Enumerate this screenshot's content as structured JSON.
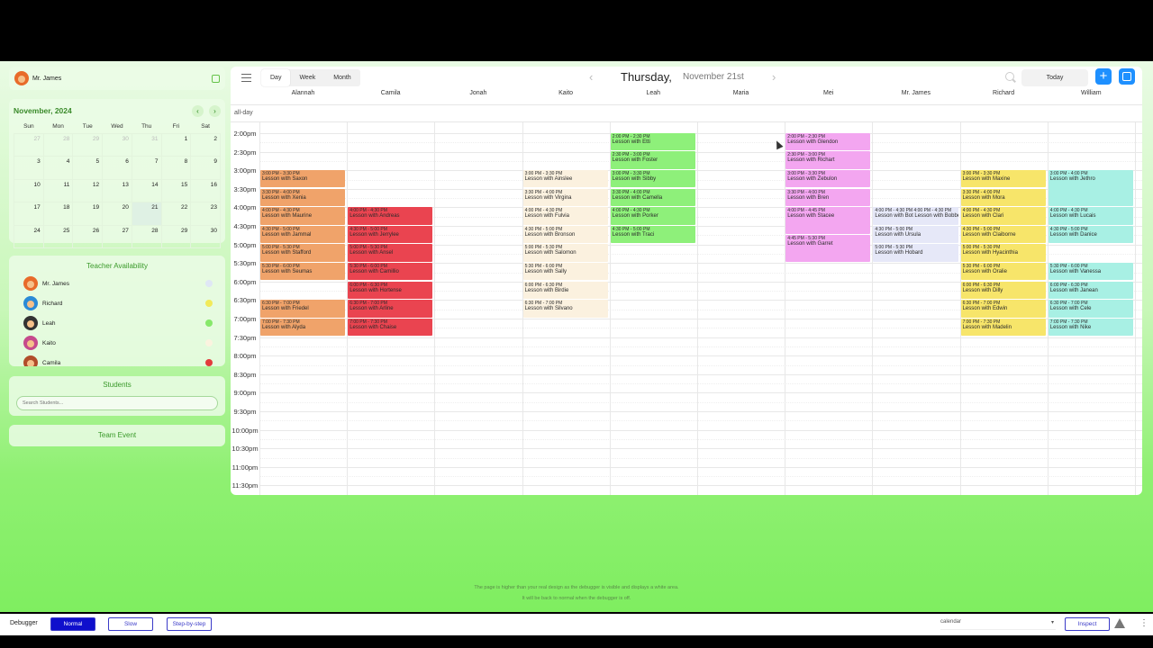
{
  "user": {
    "name": "Mr. James"
  },
  "mini_calendar": {
    "month_label": "November, 2024",
    "weekdays": [
      "Sun",
      "Mon",
      "Tue",
      "Wed",
      "Thu",
      "Fri",
      "Sat"
    ],
    "weeks": [
      [
        "27",
        "28",
        "29",
        "30",
        "31",
        "1",
        "2"
      ],
      [
        "3",
        "4",
        "5",
        "6",
        "7",
        "8",
        "9"
      ],
      [
        "10",
        "11",
        "12",
        "13",
        "14",
        "15",
        "16"
      ],
      [
        "17",
        "18",
        "19",
        "20",
        "21",
        "22",
        "23"
      ],
      [
        "24",
        "25",
        "26",
        "27",
        "28",
        "29",
        "30"
      ]
    ],
    "today": "21"
  },
  "availability": {
    "title": "Teacher Availability",
    "teachers": [
      {
        "name": "Mr. James",
        "dot": "#dfe7f5",
        "avatar": "#e86b2a"
      },
      {
        "name": "Richard",
        "dot": "#f2ea5a",
        "avatar": "#2b8bd6"
      },
      {
        "name": "Leah",
        "dot": "#86e86a",
        "avatar": "#333333"
      },
      {
        "name": "Kaito",
        "dot": "#fbf3df",
        "avatar": "#c64a8c"
      },
      {
        "name": "Camila",
        "dot": "#e23b3b",
        "avatar": "#b14d2a"
      }
    ]
  },
  "students": {
    "title": "Students",
    "search_placeholder": "Search Students..."
  },
  "team_event": {
    "title": "Team Event"
  },
  "toolbar": {
    "views": [
      "Day",
      "Week",
      "Month"
    ],
    "active_view": "Day",
    "date_title": "Thursday,",
    "date_sub": "November 21st",
    "today_label": "Today",
    "add_label": "+"
  },
  "columns": [
    "Alannah",
    "Camila",
    "Jonah",
    "Kaito",
    "Leah",
    "Maria",
    "Mei",
    "Mr. James",
    "Richard",
    "William"
  ],
  "allday_label": "all-day",
  "time_labels": [
    "2:00pm",
    "2:30pm",
    "3:00pm",
    "3:30pm",
    "4:00pm",
    "4:30pm",
    "5:00pm",
    "5:30pm",
    "6:00pm",
    "6:30pm",
    "7:00pm",
    "7:30pm",
    "8:00pm",
    "8:30pm",
    "9:00pm",
    "9:30pm",
    "10:00pm",
    "10:30pm",
    "11:00pm",
    "11:30pm"
  ],
  "column_colors": {
    "Alannah": "#f0a36a",
    "Camila": "#ea4450",
    "Kaito": "#fbf1df",
    "Leah": "#8ef07a",
    "Mei": "#f3a6f0",
    "Mr. James": "#e6e8f8",
    "Richard": "#f7e56a",
    "William": "#a8f0e4"
  },
  "events": [
    {
      "col": 0,
      "start": "3:00",
      "end": "3:30",
      "time": "3:00 PM - 3:30 PM",
      "title": "Lesson with Saxon"
    },
    {
      "col": 0,
      "start": "3:30",
      "end": "4:00",
      "time": "3:30 PM - 4:00 PM",
      "title": "Lesson with Xenia"
    },
    {
      "col": 0,
      "start": "4:00",
      "end": "4:30",
      "time": "4:00 PM - 4:30 PM",
      "title": "Lesson with Maurine"
    },
    {
      "col": 0,
      "start": "4:30",
      "end": "5:00",
      "time": "4:30 PM - 5:00 PM",
      "title": "Lesson with Jammal"
    },
    {
      "col": 0,
      "start": "5:00",
      "end": "5:30",
      "time": "5:00 PM - 5:30 PM",
      "title": "Lesson with Stafford"
    },
    {
      "col": 0,
      "start": "5:30",
      "end": "6:00",
      "time": "5:30 PM - 6:00 PM",
      "title": "Lesson with Seumas"
    },
    {
      "col": 0,
      "start": "6:30",
      "end": "7:00",
      "time": "6:30 PM - 7:00 PM",
      "title": "Lesson with Friedel"
    },
    {
      "col": 0,
      "start": "7:00",
      "end": "7:30",
      "time": "7:00 PM - 7:30 PM",
      "title": "Lesson with Alyda"
    },
    {
      "col": 1,
      "start": "4:00",
      "end": "4:30",
      "time": "4:00 PM - 4:30 PM",
      "title": "Lesson with Andreas"
    },
    {
      "col": 1,
      "start": "4:30",
      "end": "5:00",
      "time": "4:30 PM - 5:00 PM",
      "title": "Lesson with Jerrylee"
    },
    {
      "col": 1,
      "start": "5:00",
      "end": "5:30",
      "time": "5:00 PM - 5:30 PM",
      "title": "Lesson with Ansel"
    },
    {
      "col": 1,
      "start": "5:30",
      "end": "6:00",
      "time": "5:30 PM - 6:00 PM",
      "title": "Lesson with Camillio"
    },
    {
      "col": 1,
      "start": "6:00",
      "end": "6:30",
      "time": "6:00 PM - 6:30 PM",
      "title": "Lesson with Hortense"
    },
    {
      "col": 1,
      "start": "6:30",
      "end": "7:00",
      "time": "6:30 PM - 7:00 PM",
      "title": "Lesson with Arline"
    },
    {
      "col": 1,
      "start": "7:00",
      "end": "7:30",
      "time": "7:00 PM - 7:30 PM",
      "title": "Lesson with Chaise"
    },
    {
      "col": 3,
      "start": "3:00",
      "end": "3:30",
      "time": "3:00 PM - 3:30 PM",
      "title": "Lesson with Ainslee"
    },
    {
      "col": 3,
      "start": "3:30",
      "end": "4:00",
      "time": "3:30 PM - 4:00 PM",
      "title": "Lesson with Virgina"
    },
    {
      "col": 3,
      "start": "4:00",
      "end": "4:30",
      "time": "4:00 PM - 4:30 PM",
      "title": "Lesson with Fulvia"
    },
    {
      "col": 3,
      "start": "4:30",
      "end": "5:00",
      "time": "4:30 PM - 5:00 PM",
      "title": "Lesson with Bronson"
    },
    {
      "col": 3,
      "start": "5:00",
      "end": "5:30",
      "time": "5:00 PM - 5:30 PM",
      "title": "Lesson with Salomon"
    },
    {
      "col": 3,
      "start": "5:30",
      "end": "6:00",
      "time": "5:30 PM - 6:00 PM",
      "title": "Lesson with Sally"
    },
    {
      "col": 3,
      "start": "6:00",
      "end": "6:30",
      "time": "6:00 PM - 6:30 PM",
      "title": "Lesson with Birdie"
    },
    {
      "col": 3,
      "start": "6:30",
      "end": "7:00",
      "time": "6:30 PM - 7:00 PM",
      "title": "Lesson with Silvano"
    },
    {
      "col": 4,
      "start": "2:00",
      "end": "2:30",
      "time": "2:00 PM - 2:30 PM",
      "title": "Lesson with Etti"
    },
    {
      "col": 4,
      "start": "2:30",
      "end": "3:00",
      "time": "2:30 PM - 3:00 PM",
      "title": "Lesson with Foster"
    },
    {
      "col": 4,
      "start": "3:00",
      "end": "3:30",
      "time": "3:00 PM - 3:30 PM",
      "title": "Lesson with Sibby"
    },
    {
      "col": 4,
      "start": "3:30",
      "end": "4:00",
      "time": "3:30 PM - 4:00 PM",
      "title": "Lesson with Camella"
    },
    {
      "col": 4,
      "start": "4:00",
      "end": "4:30",
      "time": "4:00 PM - 4:30 PM",
      "title": "Lesson with Porker"
    },
    {
      "col": 4,
      "start": "4:30",
      "end": "5:00",
      "time": "4:30 PM - 5:00 PM",
      "title": "Lesson with Traci"
    },
    {
      "col": 6,
      "start": "2:00",
      "end": "2:30",
      "time": "2:00 PM - 2:30 PM",
      "title": "Lesson with Glendon"
    },
    {
      "col": 6,
      "start": "2:30",
      "end": "3:00",
      "time": "2:30 PM - 3:00 PM",
      "title": "Lesson with Richart"
    },
    {
      "col": 6,
      "start": "3:00",
      "end": "3:30",
      "time": "3:00 PM - 3:30 PM",
      "title": "Lesson with Zebulon"
    },
    {
      "col": 6,
      "start": "3:30",
      "end": "4:00",
      "time": "3:30 PM - 4:00 PM",
      "title": "Lesson with Bren"
    },
    {
      "col": 6,
      "start": "4:00",
      "end": "4:45",
      "time": "4:00 PM - 4:45 PM",
      "title": "Lesson with Stacee"
    },
    {
      "col": 6,
      "start": "4:45",
      "end": "5:30",
      "time": "4:45 PM - 5:30 PM",
      "title": "Lesson with Garret"
    },
    {
      "col": 7,
      "start": "4:00",
      "end": "4:30",
      "time": "4:00 PM - 4:30 PM 4:00 PM - 4:30 PM",
      "title": "Lesson with Bot Lesson with Bobbe"
    },
    {
      "col": 7,
      "start": "4:30",
      "end": "5:00",
      "time": "4:30 PM - 5:00 PM",
      "title": "Lesson with Ursula"
    },
    {
      "col": 7,
      "start": "5:00",
      "end": "5:30",
      "time": "5:00 PM - 5:30 PM",
      "title": "Lesson with Hobard"
    },
    {
      "col": 8,
      "start": "3:00",
      "end": "3:30",
      "time": "3:00 PM - 3:30 PM",
      "title": "Lesson with Maxine"
    },
    {
      "col": 8,
      "start": "3:30",
      "end": "4:00",
      "time": "3:30 PM - 4:00 PM",
      "title": "Lesson with Mora"
    },
    {
      "col": 8,
      "start": "4:00",
      "end": "4:30",
      "time": "4:00 PM - 4:30 PM",
      "title": "Lesson with Clari"
    },
    {
      "col": 8,
      "start": "4:30",
      "end": "5:00",
      "time": "4:30 PM - 5:00 PM",
      "title": "Lesson with Claiborne"
    },
    {
      "col": 8,
      "start": "5:00",
      "end": "5:30",
      "time": "5:00 PM - 5:30 PM",
      "title": "Lesson with Hyacinthia"
    },
    {
      "col": 8,
      "start": "5:30",
      "end": "6:00",
      "time": "5:30 PM - 6:00 PM",
      "title": "Lesson with Oralie"
    },
    {
      "col": 8,
      "start": "6:00",
      "end": "6:30",
      "time": "6:00 PM - 6:30 PM",
      "title": "Lesson with Dilly"
    },
    {
      "col": 8,
      "start": "6:30",
      "end": "7:00",
      "time": "6:30 PM - 7:00 PM",
      "title": "Lesson with Edwin"
    },
    {
      "col": 8,
      "start": "7:00",
      "end": "7:30",
      "time": "7:00 PM - 7:30 PM",
      "title": "Lesson with Madelin"
    },
    {
      "col": 9,
      "start": "3:00",
      "end": "4:00",
      "time": "3:00 PM - 4:00 PM",
      "title": "Lesson with Jethro"
    },
    {
      "col": 9,
      "start": "4:00",
      "end": "4:30",
      "time": "4:00 PM - 4:30 PM",
      "title": "Lesson with Lucais"
    },
    {
      "col": 9,
      "start": "4:30",
      "end": "5:00",
      "time": "4:30 PM - 5:00 PM",
      "title": "Lesson with Danice"
    },
    {
      "col": 9,
      "start": "5:30",
      "end": "6:00",
      "time": "5:30 PM - 6:00 PM",
      "title": "Lesson with Vanessa"
    },
    {
      "col": 9,
      "start": "6:00",
      "end": "6:30",
      "time": "6:00 PM - 6:30 PM",
      "title": "Lesson with Janean"
    },
    {
      "col": 9,
      "start": "6:30",
      "end": "7:00",
      "time": "6:30 PM - 7:00 PM",
      "title": "Lesson with Cele"
    },
    {
      "col": 9,
      "start": "7:00",
      "end": "7:30",
      "time": "7:00 PM - 7:30 PM",
      "title": "Lesson with Nike"
    }
  ],
  "notice": {
    "line1": "The page is higher than your real design as the debugger is visible and displays a white area.",
    "line2": "It will be back to normal when the debugger is off."
  },
  "debugger": {
    "label": "Debugger",
    "buttons": [
      "Normal",
      "Slow",
      "Step-by-step"
    ],
    "active": "Normal",
    "select_value": "calendar",
    "inspect_label": "Inspect"
  }
}
